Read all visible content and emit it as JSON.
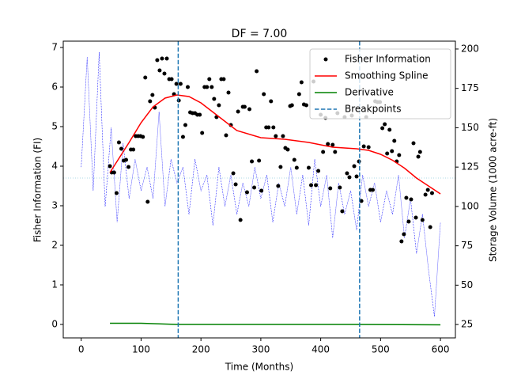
{
  "chart_data": {
    "type": "combo",
    "title": "DF = 7.00",
    "x_label": "Time (Months)",
    "y_label": "Fisher Information (FI)",
    "y2_label": "Storage Volume (1000 acre-ft)",
    "xlim": [
      -30,
      625
    ],
    "ylim": [
      -0.34,
      7.16
    ],
    "y2lim": [
      16.5,
      205
    ],
    "xticks": [
      0,
      100,
      200,
      300,
      400,
      500,
      600
    ],
    "yticks": [
      0,
      1,
      2,
      3,
      4,
      5,
      6,
      7
    ],
    "y2ticks": [
      25,
      50,
      75,
      100,
      125,
      150,
      175,
      200
    ],
    "legend": "upper right",
    "series": [
      {
        "name": "Fisher Information",
        "kind": "scatter",
        "color": "#000000",
        "x": [
          48,
          51,
          55,
          59,
          63,
          67,
          71,
          75,
          79,
          83,
          87,
          91,
          95,
          99,
          103,
          107,
          111,
          115,
          119,
          123,
          127,
          131,
          135,
          139,
          143,
          147,
          151,
          155,
          159,
          163,
          166,
          170,
          174,
          178,
          182,
          186,
          190,
          194,
          198,
          202,
          206,
          210,
          214,
          218,
          222,
          226,
          230,
          234,
          238,
          242,
          246,
          250,
          254,
          258,
          262,
          266,
          270,
          273,
          277,
          281,
          285,
          289,
          293,
          297,
          301,
          305,
          309,
          313,
          317,
          321,
          325,
          329,
          333,
          337,
          341,
          345,
          349,
          352,
          356,
          360,
          364,
          368,
          372,
          376,
          380,
          384,
          388,
          392,
          396,
          400,
          404,
          408,
          412,
          416,
          420,
          424,
          428,
          432,
          436,
          440,
          444,
          448,
          452,
          456,
          460,
          464,
          468,
          472,
          476,
          480,
          483,
          487,
          491,
          495,
          499,
          503,
          507,
          511,
          515,
          519,
          523,
          527,
          531,
          535,
          539,
          543,
          547,
          551,
          555,
          559,
          563,
          566,
          570,
          575,
          579,
          583,
          586
        ],
        "values": [
          4.0,
          3.84,
          3.84,
          3.32,
          4.6,
          4.44,
          4.14,
          4.16,
          3.98,
          4.42,
          4.42,
          4.76,
          4.76,
          4.76,
          4.74,
          6.24,
          3.1,
          5.64,
          5.8,
          5.48,
          6.68,
          6.42,
          6.72,
          6.34,
          6.72,
          6.2,
          6.2,
          5.82,
          6.08,
          5.66,
          6.08,
          4.74,
          5.04,
          6.0,
          5.36,
          5.34,
          5.34,
          5.3,
          5.3,
          4.84,
          6.0,
          6.0,
          6.2,
          6.0,
          5.7,
          5.24,
          5.54,
          6.2,
          6.2,
          4.78,
          5.86,
          5.04,
          3.82,
          3.54,
          5.38,
          2.64,
          5.5,
          5.5,
          3.34,
          5.44,
          4.12,
          3.46,
          6.4,
          4.14,
          3.38,
          5.82,
          4.98,
          4.98,
          5.64,
          4.98,
          4.76,
          3.5,
          3.98,
          4.76,
          4.46,
          4.42,
          5.52,
          5.54,
          4.16,
          3.96,
          5.82,
          6.12,
          5.56,
          5.54,
          3.96,
          3.52,
          6.14,
          3.52,
          3.88,
          5.3,
          4.36,
          5.22,
          4.56,
          3.44,
          4.54,
          4.36,
          5.34,
          3.46,
          2.86,
          5.24,
          3.82,
          3.72,
          5.28,
          4.0,
          3.74,
          4.12,
          3.12,
          4.5,
          5.24,
          4.48,
          3.4,
          3.4,
          5.64,
          5.62,
          5.62,
          4.96,
          5.06,
          4.32,
          4.92,
          4.38,
          4.64,
          4.12,
          4.28,
          2.1,
          2.28,
          3.2,
          2.6,
          3.16,
          4.58,
          2.7,
          4.24,
          4.36,
          2.64,
          3.28,
          3.4,
          2.46,
          3.32
        ]
      },
      {
        "name": "Smoothing Spline",
        "kind": "line",
        "color": "#ff0000",
        "x": [
          48,
          80,
          100,
          120,
          140,
          160,
          180,
          200,
          230,
          260,
          300,
          340,
          380,
          420,
          460,
          480,
          500,
          520,
          540,
          560,
          580,
          600
        ],
        "values": [
          3.84,
          4.6,
          5.1,
          5.5,
          5.72,
          5.8,
          5.76,
          5.6,
          5.25,
          4.9,
          4.72,
          4.68,
          4.6,
          4.48,
          4.44,
          4.4,
          4.3,
          4.15,
          3.95,
          3.7,
          3.5,
          3.3
        ]
      },
      {
        "name": "Derivative",
        "kind": "line",
        "color": "#008000",
        "x": [
          48,
          100,
          160,
          300,
          450,
          600
        ],
        "values": [
          0.03,
          0.03,
          0.0,
          0.0,
          0.0,
          -0.01
        ]
      },
      {
        "name": "Breakpoints",
        "kind": "vline",
        "color": "#1f77b4",
        "x": [
          162,
          465
        ]
      }
    ],
    "y2_series": {
      "kind": "dotted",
      "axis": "y2",
      "color": "#0000ff",
      "x": [
        0,
        10,
        20,
        30,
        40,
        50,
        60,
        70,
        80,
        90,
        100,
        110,
        120,
        130,
        140,
        150,
        160,
        170,
        180,
        190,
        200,
        210,
        220,
        230,
        240,
        250,
        260,
        270,
        280,
        290,
        300,
        310,
        320,
        330,
        340,
        350,
        360,
        370,
        380,
        390,
        400,
        410,
        420,
        430,
        440,
        450,
        460,
        470,
        480,
        490,
        500,
        510,
        520,
        530,
        540,
        550,
        560,
        570,
        580,
        590,
        600
      ],
      "values": [
        125,
        195,
        110,
        198,
        100,
        150,
        90,
        140,
        105,
        130,
        110,
        125,
        105,
        160,
        100,
        130,
        115,
        125,
        95,
        130,
        110,
        120,
        88,
        125,
        100,
        120,
        95,
        115,
        100,
        125,
        105,
        120,
        90,
        115,
        100,
        125,
        95,
        120,
        88,
        130,
        100,
        120,
        80,
        115,
        95,
        110,
        85,
        120,
        100,
        115,
        90,
        110,
        95,
        120,
        80,
        105,
        70,
        95,
        60,
        30,
        90
      ]
    },
    "hline": {
      "value": 3.7,
      "color": "#add8e6"
    }
  }
}
